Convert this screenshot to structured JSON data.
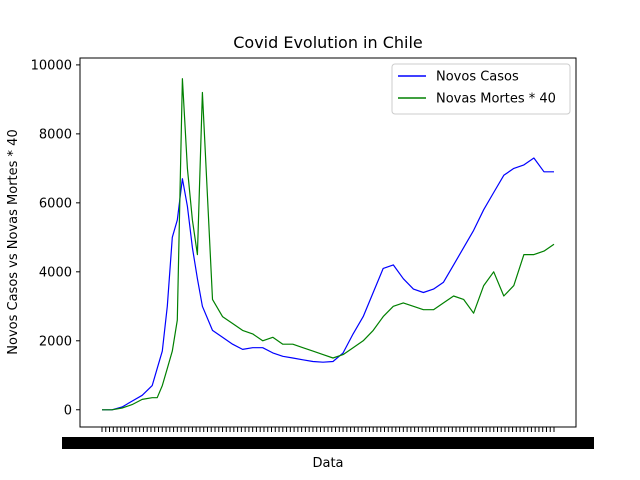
{
  "chart_data": {
    "type": "line",
    "title": "Covid Evolution in Chile",
    "xlabel": "Data",
    "ylabel": "Novos Casos vs Novas Mortes * 40",
    "ylim": [
      -500,
      10200
    ],
    "yticks": [
      0,
      2000,
      4000,
      6000,
      8000,
      10000
    ],
    "xticks_note": "Date tick labels are densely overlapping and unreadable",
    "x": [
      0,
      20,
      40,
      60,
      80,
      100,
      110,
      120,
      130,
      140,
      150,
      160,
      170,
      180,
      190,
      200,
      220,
      240,
      260,
      280,
      300,
      320,
      340,
      360,
      380,
      400,
      420,
      440,
      460,
      480,
      500,
      520,
      540,
      560,
      580,
      600,
      620,
      640,
      660,
      680,
      700,
      720,
      740,
      760,
      780,
      800,
      820,
      840,
      860,
      880,
      900
    ],
    "legend_position": "top-right",
    "grid": false,
    "series": [
      {
        "name": "Novos Casos",
        "color": "#0000ff",
        "values": [
          0,
          0,
          80,
          250,
          420,
          700,
          1200,
          1700,
          3000,
          5000,
          5500,
          6700,
          5900,
          4700,
          3800,
          3000,
          2300,
          2100,
          1900,
          1750,
          1800,
          1800,
          1650,
          1550,
          1500,
          1450,
          1400,
          1380,
          1400,
          1650,
          2200,
          2700,
          3400,
          4100,
          4200,
          3800,
          3500,
          3400,
          3500,
          3700,
          4200,
          4700,
          5200,
          5800,
          6300,
          6800,
          7000,
          7100,
          7300,
          6900,
          6900
        ]
      },
      {
        "name": "Novas Mortes * 40",
        "color": "#008000",
        "values": [
          0,
          0,
          50,
          150,
          300,
          350,
          350,
          700,
          1200,
          1700,
          2600,
          9600,
          7000,
          5500,
          4500,
          9200,
          3200,
          2700,
          2500,
          2300,
          2200,
          2000,
          2100,
          1900,
          1900,
          1800,
          1700,
          1600,
          1500,
          1600,
          1800,
          2000,
          2300,
          2700,
          3000,
          3100,
          3000,
          2900,
          2900,
          3100,
          3300,
          3200,
          2800,
          3600,
          4000,
          3300,
          3600,
          4500,
          4500,
          4600,
          4800
        ]
      }
    ]
  }
}
